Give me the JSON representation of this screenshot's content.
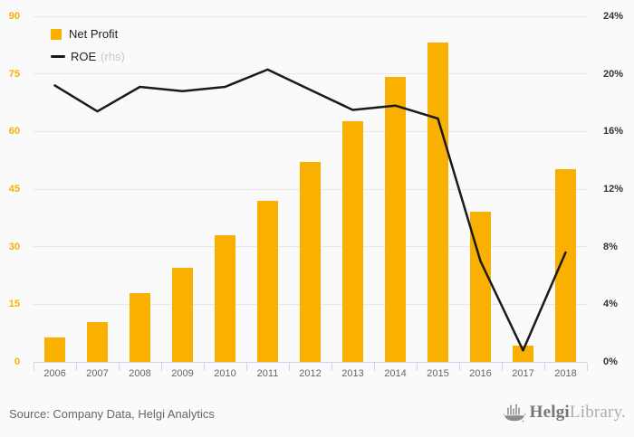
{
  "chart_data": {
    "type": "bar",
    "categories": [
      "2006",
      "2007",
      "2008",
      "2009",
      "2010",
      "2011",
      "2012",
      "2013",
      "2014",
      "2015",
      "2016",
      "2017",
      "2018"
    ],
    "series": [
      {
        "name": "Net Profit",
        "render": "bar",
        "axis": "left",
        "color": "#F9B000",
        "values": [
          6.3,
          10.3,
          17.9,
          24.5,
          33.0,
          41.9,
          52.1,
          62.7,
          74.1,
          83.2,
          39.2,
          4.3,
          50.1
        ]
      },
      {
        "name": "ROE",
        "legend_suffix": "(rhs)",
        "render": "line",
        "axis": "right",
        "color": "#1A1A1A",
        "values": [
          19.2,
          17.4,
          19.1,
          18.8,
          19.1,
          20.3,
          18.9,
          17.5,
          17.8,
          16.9,
          7.0,
          0.8,
          7.6
        ]
      }
    ],
    "title": "",
    "xlabel": "",
    "ylabel": "",
    "left_axis": {
      "min": 0,
      "max": 90,
      "tick_step": 15,
      "tick_labels": [
        "0",
        "15",
        "30",
        "45",
        "60",
        "75",
        "90"
      ],
      "label_color": "#F9B000"
    },
    "right_axis": {
      "min": 0,
      "max": 24,
      "tick_step": 4,
      "tick_labels": [
        "0%",
        "4%",
        "8%",
        "12%",
        "16%",
        "20%",
        "24%"
      ],
      "label_color": "#333333"
    },
    "grid": true,
    "legend_position": "top-left",
    "background": "#FAFAFA"
  },
  "legend": {
    "items": [
      {
        "label": "Net Profit",
        "suffix": "",
        "marker": "square",
        "color": "#F9B000"
      },
      {
        "label": "ROE",
        "suffix": "(rhs)",
        "marker": "line",
        "color": "#1A1A1A"
      }
    ]
  },
  "footer": {
    "source": "Source: Company Data, Helgi Analytics",
    "logo_primary": "Helgi",
    "logo_secondary": "Library."
  }
}
